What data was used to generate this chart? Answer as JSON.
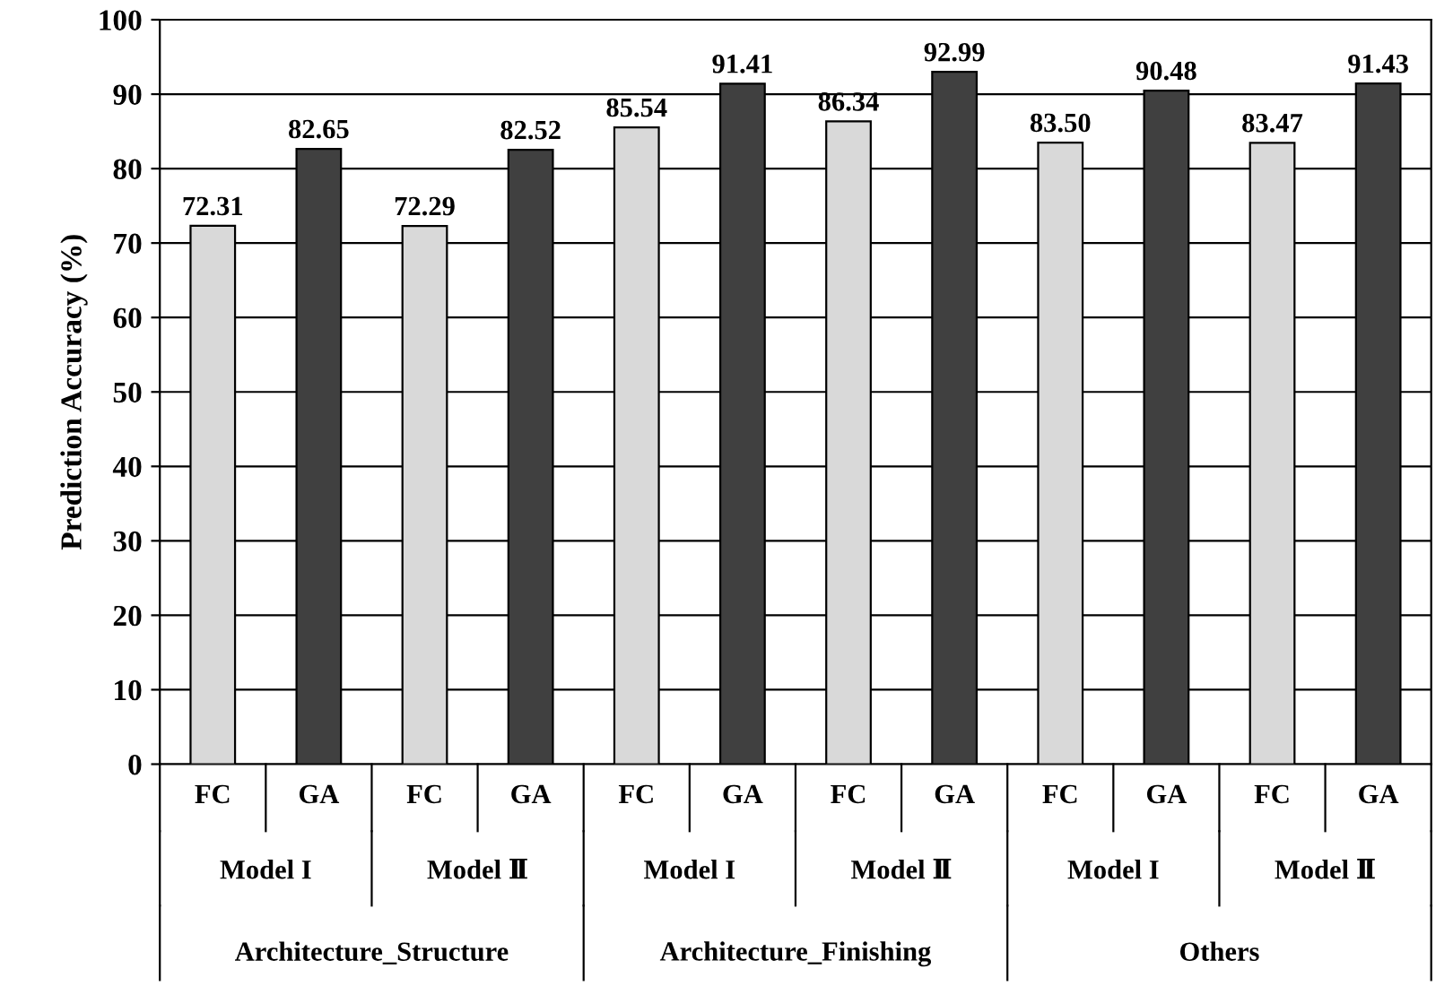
{
  "chart_data": {
    "type": "bar",
    "ylabel": "Prediction Accuracy (%)",
    "categories": [
      "FC",
      "GA",
      "FC",
      "GA",
      "FC",
      "GA",
      "FC",
      "GA",
      "FC",
      "GA",
      "FC",
      "GA"
    ],
    "values": [
      72.31,
      82.65,
      72.29,
      82.52,
      85.54,
      91.41,
      86.34,
      92.99,
      83.5,
      90.48,
      83.47,
      91.43
    ],
    "value_labels": [
      "72.31",
      "82.65",
      "72.29",
      "82.52",
      "85.54",
      "91.41",
      "86.34",
      "92.99",
      "83.50",
      "90.48",
      "83.47",
      "91.43"
    ],
    "colors": [
      "#d9d9d9",
      "#404040",
      "#d9d9d9",
      "#404040",
      "#d9d9d9",
      "#404040",
      "#d9d9d9",
      "#404040",
      "#d9d9d9",
      "#404040",
      "#d9d9d9",
      "#404040"
    ],
    "annotations": [
      "Model I",
      "Model Ⅱ",
      "Model I",
      "Model Ⅱ",
      "Model I",
      "Model Ⅱ",
      "Architecture_Structure",
      "Architecture_Finishing",
      "Others"
    ],
    "ylim": [
      0,
      100
    ],
    "yticks": [
      0,
      10,
      20,
      30,
      40,
      50,
      60,
      70,
      80,
      90,
      100
    ],
    "grid": "y",
    "legend": false
  }
}
